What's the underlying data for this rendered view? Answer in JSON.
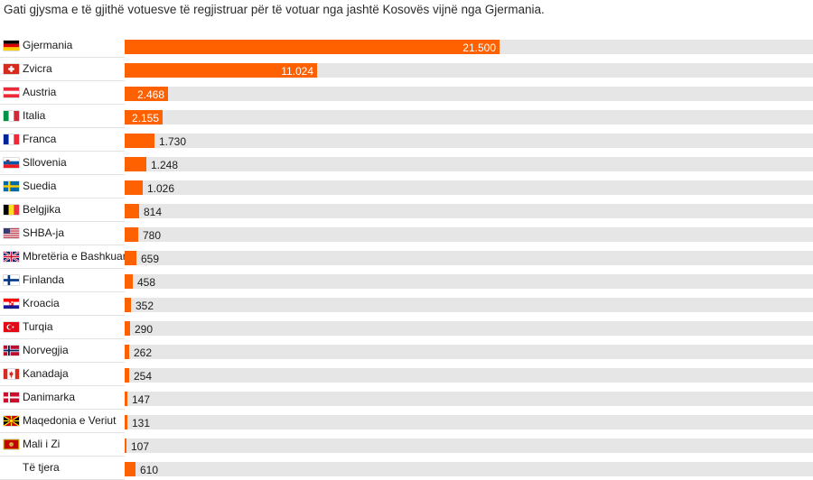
{
  "chart_data": {
    "type": "bar",
    "orientation": "horizontal",
    "subtitle": "Gati gjysma e të gjithë votuesve të regjistruar për të votuar nga jashtë Kosovës vijnë nga Gjermania.",
    "xlim": [
      0,
      39500
    ],
    "bar_color": "#ff6000",
    "track_color": "#e6e6e6",
    "categories": [
      {
        "name": "Gjermania",
        "flag": "germany-flag-icon",
        "value": 21500,
        "label": "21.500"
      },
      {
        "name": "Zvicra",
        "flag": "switzerland-flag-icon",
        "value": 11024,
        "label": "11.024"
      },
      {
        "name": "Austria",
        "flag": "austria-flag-icon",
        "value": 2468,
        "label": "2.468"
      },
      {
        "name": "Italia",
        "flag": "italy-flag-icon",
        "value": 2155,
        "label": "2.155"
      },
      {
        "name": "Franca",
        "flag": "france-flag-icon",
        "value": 1730,
        "label": "1.730"
      },
      {
        "name": "Sllovenia",
        "flag": "slovenia-flag-icon",
        "value": 1248,
        "label": "1.248"
      },
      {
        "name": "Suedia",
        "flag": "sweden-flag-icon",
        "value": 1026,
        "label": "1.026"
      },
      {
        "name": "Belgjika",
        "flag": "belgium-flag-icon",
        "value": 814,
        "label": "814"
      },
      {
        "name": "SHBA-ja",
        "flag": "usa-flag-icon",
        "value": 780,
        "label": "780"
      },
      {
        "name": "Mbretëria e Bashkuar",
        "flag": "uk-flag-icon",
        "value": 659,
        "label": "659"
      },
      {
        "name": "Finlanda",
        "flag": "finland-flag-icon",
        "value": 458,
        "label": "458"
      },
      {
        "name": "Kroacia",
        "flag": "croatia-flag-icon",
        "value": 352,
        "label": "352"
      },
      {
        "name": "Turqia",
        "flag": "turkey-flag-icon",
        "value": 290,
        "label": "290"
      },
      {
        "name": "Norvegjia",
        "flag": "norway-flag-icon",
        "value": 262,
        "label": "262"
      },
      {
        "name": "Kanadaja",
        "flag": "canada-flag-icon",
        "value": 254,
        "label": "254"
      },
      {
        "name": "Danimarka",
        "flag": "denmark-flag-icon",
        "value": 147,
        "label": "147"
      },
      {
        "name": "Maqedonia e Veriut",
        "flag": "north-macedonia-flag-icon",
        "value": 131,
        "label": "131"
      },
      {
        "name": "Mali i Zi",
        "flag": "montenegro-flag-icon",
        "value": 107,
        "label": "107"
      },
      {
        "name": "Të tjera",
        "flag": "",
        "value": 610,
        "label": "610"
      }
    ]
  }
}
